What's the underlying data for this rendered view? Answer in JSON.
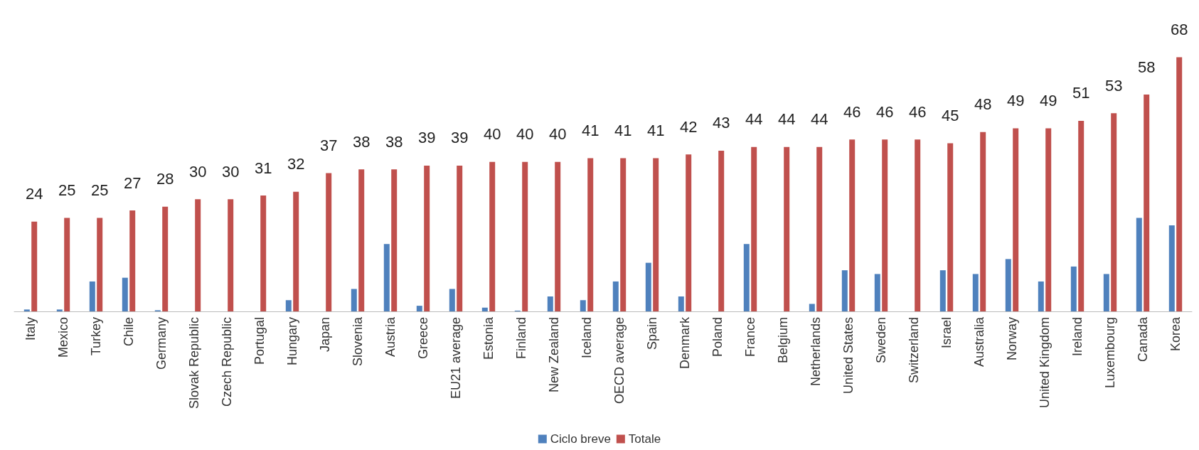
{
  "chart_data": {
    "type": "bar",
    "categories": [
      "Italy",
      "Mexico",
      "Turkey",
      "Chile",
      "Germany",
      "Slovak Republic",
      "Czech Republic",
      "Portugal",
      "Hungary",
      "Japan",
      "Slovenia",
      "Austria",
      "Greece",
      "EU21 average",
      "Estonia",
      "Finland",
      "New Zealand",
      "Iceland",
      "OECD average",
      "Spain",
      "Denmark",
      "Poland",
      "France",
      "Belgium",
      "Netherlands",
      "United States",
      "Sweden",
      "Switzerland",
      "Israel",
      "Australia",
      "Norway",
      "United Kingdom",
      "Ireland",
      "Luxembourg",
      "Canada",
      "Korea"
    ],
    "series": [
      {
        "name": "Ciclo breve",
        "color": "#4f81bd",
        "values": [
          0.5,
          0.5,
          8,
          9,
          0.3,
          0,
          0,
          0,
          3,
          0,
          6,
          18,
          1.5,
          6,
          1,
          0.2,
          4,
          3,
          8,
          13,
          4,
          0,
          18,
          0,
          2,
          11,
          10,
          0,
          11,
          10,
          14,
          8,
          12,
          10,
          25,
          23
        ]
      },
      {
        "name": "Totale",
        "color": "#c0504d",
        "values": [
          24,
          25,
          25,
          27,
          28,
          30,
          30,
          31,
          32,
          37,
          38,
          38,
          39,
          39,
          40,
          40,
          40,
          41,
          41,
          41,
          42,
          43,
          44,
          44,
          44,
          46,
          46,
          46,
          45,
          48,
          49,
          49,
          51,
          53,
          58,
          68
        ],
        "value_labels": [
          "24",
          "25",
          "25",
          "27",
          "28",
          "30",
          "30",
          "31",
          "32",
          "37",
          "38",
          "38",
          "39",
          "39",
          "40",
          "40",
          "40",
          "41",
          "41",
          "41",
          "42",
          "43",
          "44",
          "44",
          "44",
          "46",
          "46",
          "46",
          "45",
          "48",
          "49",
          "49",
          "51",
          "53",
          "58",
          "68"
        ]
      }
    ],
    "legend": "bottom"
  }
}
